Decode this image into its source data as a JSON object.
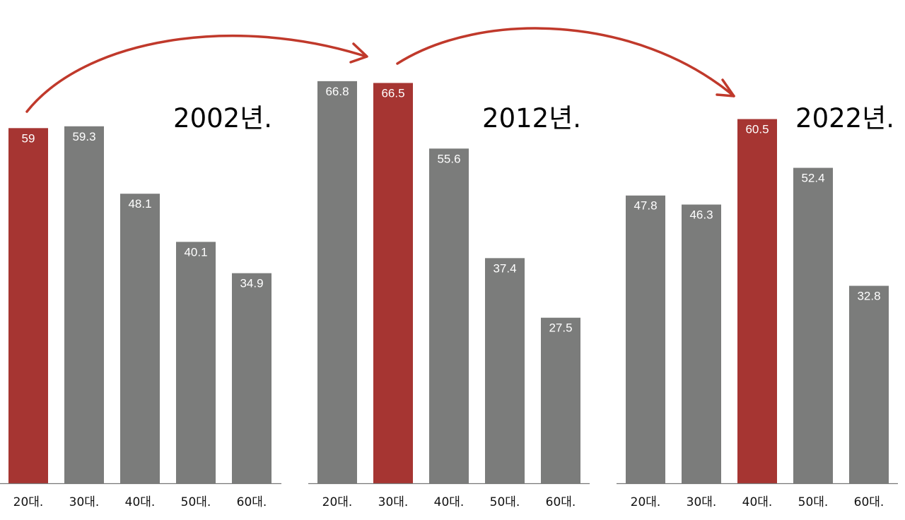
{
  "chart_data": [
    {
      "type": "bar",
      "title": "2002년.",
      "categories": [
        "20대.",
        "30대.",
        "40대.",
        "50대.",
        "60대."
      ],
      "values": [
        59,
        59.3,
        48.1,
        40.1,
        34.9
      ],
      "highlight_index": 0
    },
    {
      "type": "bar",
      "title": "2012년.",
      "categories": [
        "20대.",
        "30대.",
        "40대.",
        "50대.",
        "60대."
      ],
      "values": [
        66.8,
        66.5,
        55.6,
        37.4,
        27.5
      ],
      "highlight_index": 1
    },
    {
      "type": "bar",
      "title": "2022년.",
      "categories": [
        "20대.",
        "30대.",
        "40대.",
        "50대.",
        "60대."
      ],
      "values": [
        47.8,
        46.3,
        60.5,
        52.4,
        32.8
      ],
      "highlight_index": 2
    }
  ],
  "colors": {
    "highlight": "#a63532",
    "bar": "#7b7c7b",
    "arrow": "#c0392b",
    "axis": "#777777"
  }
}
